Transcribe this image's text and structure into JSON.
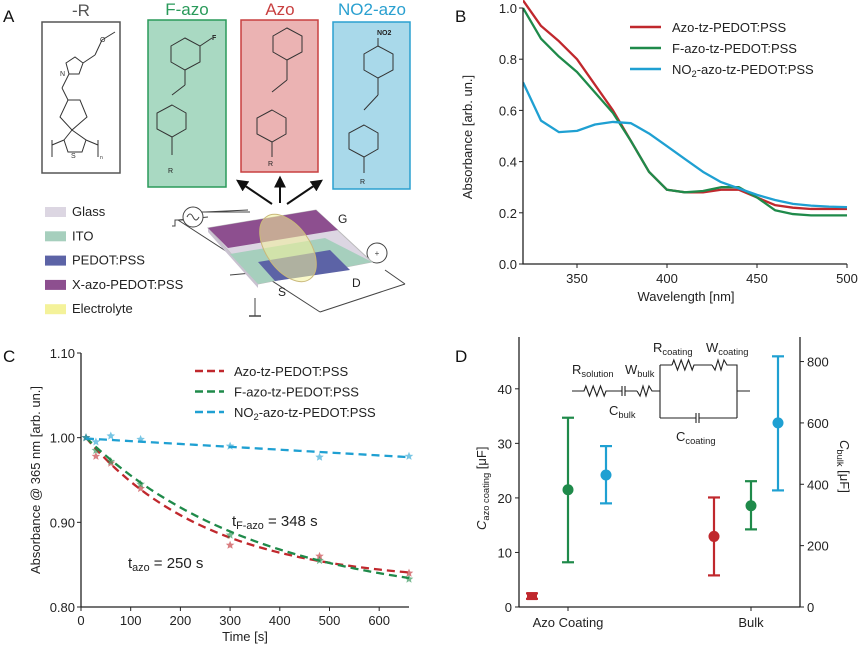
{
  "colors": {
    "azo": "#c0282d",
    "fazo": "#1f8a4a",
    "no2azo": "#1fa0d2"
  },
  "panelA": {
    "label": "A",
    "structures": [
      {
        "title": "-R",
        "color": "#555555",
        "fill": "#ffffff"
      },
      {
        "title": "F-azo",
        "color": "#2a9a5a",
        "fill": "#a9d9c2",
        "substituent": "F",
        "r": "R"
      },
      {
        "title": "Azo",
        "color": "#c84040",
        "fill": "#ebb3b3",
        "r": "R"
      },
      {
        "title": "NO2-azo",
        "color": "#2aa0d0",
        "fill": "#a9d9ea",
        "substituent": "NO2",
        "r": "R"
      }
    ],
    "r_atoms": {
      "o": "O",
      "n": "N",
      "s": "S",
      "sub_n": "n"
    },
    "legend": [
      {
        "label": "Glass",
        "color": "#dcd6e2"
      },
      {
        "label": "ITO",
        "color": "#a6cfbd"
      },
      {
        "label": "PEDOT:PSS",
        "color": "#5c63a6"
      },
      {
        "label": "X-azo-PEDOT:PSS",
        "color": "#8d4f8f"
      },
      {
        "label": "Electrolyte",
        "color": "#f4f29a"
      }
    ],
    "device_labels": {
      "gate": "G",
      "source": "S",
      "drain": "D"
    }
  },
  "chart_data": [
    {
      "panel": "B",
      "type": "line",
      "xlabel": "Wavelength [nm]",
      "ylabel": "Absorbance [arb. un.]",
      "xlim": [
        320,
        500
      ],
      "ylim": [
        0.0,
        1.0
      ],
      "xticks": [
        "350",
        "400",
        "450",
        "500"
      ],
      "yticks": [
        "0.0",
        "0.2",
        "0.4",
        "0.6",
        "0.8",
        "1.0"
      ],
      "legend_position": "top-right",
      "x": [
        320,
        330,
        340,
        350,
        360,
        370,
        380,
        390,
        400,
        410,
        420,
        430,
        440,
        450,
        460,
        470,
        480,
        490,
        500
      ],
      "series": [
        {
          "name": "Azo-tz-PEDOT:PSS",
          "color": "#c0282d",
          "values": [
            1.03,
            0.93,
            0.87,
            0.8,
            0.7,
            0.6,
            0.48,
            0.36,
            0.29,
            0.28,
            0.28,
            0.29,
            0.29,
            0.26,
            0.23,
            0.22,
            0.215,
            0.215,
            0.215
          ]
        },
        {
          "name": "F-azo-tz-PEDOT:PSS",
          "color": "#1f8a4a",
          "values": [
            1.0,
            0.88,
            0.81,
            0.75,
            0.67,
            0.59,
            0.48,
            0.36,
            0.29,
            0.28,
            0.285,
            0.3,
            0.3,
            0.26,
            0.21,
            0.195,
            0.19,
            0.19,
            0.19
          ]
        },
        {
          "name": "NO2-azo-tz-PEDOT:PSS",
          "color": "#1fa0d2",
          "values": [
            0.71,
            0.56,
            0.515,
            0.52,
            0.545,
            0.555,
            0.55,
            0.51,
            0.46,
            0.41,
            0.36,
            0.32,
            0.295,
            0.27,
            0.25,
            0.235,
            0.228,
            0.224,
            0.222
          ]
        }
      ]
    },
    {
      "panel": "C",
      "type": "scatter",
      "xlabel": "Time [s]",
      "ylabel": "Absorbance @ 365 nm [arb. un.]",
      "xlim": [
        0,
        660
      ],
      "ylim": [
        0.8,
        1.1
      ],
      "xticks": [
        "0",
        "100",
        "200",
        "300",
        "400",
        "500",
        "600"
      ],
      "yticks": [
        "0.80",
        "0.90",
        "1.00",
        "1.10"
      ],
      "legend_position": "top-right",
      "x": [
        10,
        30,
        60,
        120,
        300,
        480,
        660
      ],
      "series": [
        {
          "name": "Azo-tz-PEDOT:PSS",
          "color": "#c0282d",
          "marker": "star",
          "fit": "dashed",
          "tau_s": 250,
          "values": [
            1.0,
            0.978,
            0.97,
            0.94,
            0.873,
            0.86,
            0.84
          ]
        },
        {
          "name": "F-azo-tz-PEDOT:PSS",
          "color": "#1f8a4a",
          "marker": "star",
          "fit": "dashed",
          "tau_s": 348,
          "values": [
            1.0,
            0.985,
            0.972,
            0.945,
            0.885,
            0.855,
            0.833
          ]
        },
        {
          "name": "NO2-azo-tz-PEDOT:PSS",
          "color": "#1fa0d2",
          "marker": "star",
          "fit": "dashed",
          "values": [
            1.0,
            0.995,
            1.002,
            0.998,
            0.99,
            0.977,
            0.978
          ]
        }
      ],
      "annotations": [
        {
          "text_main": "t",
          "text_sub": "azo",
          "text_rest": " = 250 s"
        },
        {
          "text_main": "t",
          "text_sub": "F-azo",
          "text_rest": " = 348 s"
        }
      ]
    },
    {
      "panel": "D",
      "type": "scatter",
      "categories": [
        "Azo Coating",
        "Bulk"
      ],
      "ylabel_left": {
        "main": "C",
        "sub": "azo coating",
        "unit": " [μF]"
      },
      "ylabel_right": {
        "main": "C",
        "sub": "bulk",
        "unit": " [μF]"
      },
      "ylim_left": [
        0,
        49.5
      ],
      "ylim_right": [
        0,
        880
      ],
      "yticks_left": [
        "0",
        "10",
        "20",
        "30",
        "40"
      ],
      "yticks_right": [
        "0",
        "200",
        "400",
        "600",
        "800"
      ],
      "points": [
        {
          "category": "Azo Coating",
          "axis": "left",
          "color": "#c0282d",
          "marker": "square",
          "value": 2.0,
          "low": 1.5,
          "high": 2.5
        },
        {
          "category": "Azo Coating",
          "axis": "left",
          "color": "#1f8a4a",
          "marker": "circle",
          "value": 21.5,
          "low": 8.2,
          "high": 34.7
        },
        {
          "category": "Azo Coating",
          "axis": "left",
          "color": "#1fa0d2",
          "marker": "circle",
          "value": 24.2,
          "low": 19.0,
          "high": 29.5
        },
        {
          "category": "Bulk",
          "axis": "right",
          "color": "#c0282d",
          "marker": "circle",
          "value": 230,
          "low": 103,
          "high": 357
        },
        {
          "category": "Bulk",
          "axis": "right",
          "color": "#1f8a4a",
          "marker": "circle",
          "value": 330,
          "low": 253,
          "high": 410
        },
        {
          "category": "Bulk",
          "axis": "right",
          "color": "#1fa0d2",
          "marker": "circle",
          "value": 600,
          "low": 380,
          "high": 817
        }
      ],
      "circuit": {
        "r_solution": {
          "main": "R",
          "sub": "solution"
        },
        "w_bulk": {
          "main": "W",
          "sub": "bulk"
        },
        "c_bulk": {
          "main": "C",
          "sub": "bulk"
        },
        "r_coating": {
          "main": "R",
          "sub": "coating"
        },
        "w_coating": {
          "main": "W",
          "sub": "coating"
        },
        "c_coating": {
          "main": "C",
          "sub": "coating"
        }
      }
    }
  ]
}
